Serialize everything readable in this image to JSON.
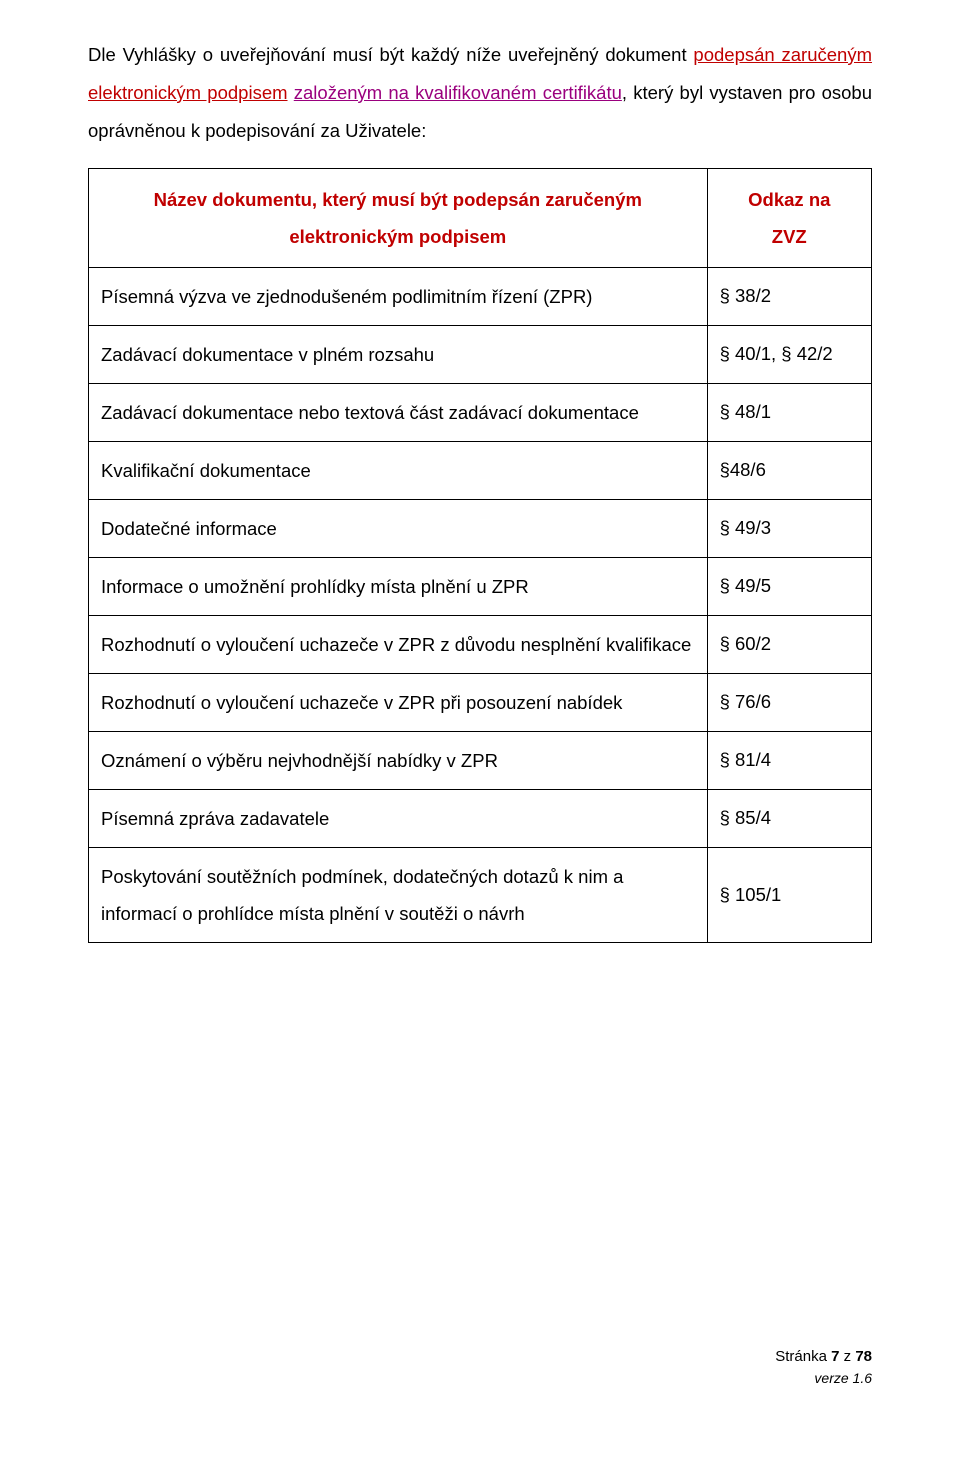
{
  "intro": {
    "prefix": "Dle Vyhlášky o uveřejňování musí být každý níže uveřejněný dokument ",
    "red1": "podepsán zaručeným elektronickým podpisem",
    "mid1": " ",
    "fuchsia1": "založeným na kvalifikovaném certifikátu",
    "comma": ",",
    "mid2": " který byl vystaven pro osobu oprávněnou k podepisování za Uživatele:"
  },
  "table": {
    "header_left_line1": "Název dokumentu, který musí být podepsán zaručeným",
    "header_left_line2": "elektronickým podpisem",
    "header_right_line1": "Odkaz na",
    "header_right_line2": "ZVZ",
    "rows": [
      {
        "name": "Písemná výzva ve zjednodušeném podlimitním řízení (ZPR)",
        "ref": "§ 38/2"
      },
      {
        "name": "Zadávací dokumentace v plném rozsahu",
        "ref": "§ 40/1, § 42/2"
      },
      {
        "name": "Zadávací dokumentace nebo textová část zadávací dokumentace",
        "ref": "§ 48/1"
      },
      {
        "name": "Kvalifikační dokumentace",
        "ref": "§48/6"
      },
      {
        "name": "Dodatečné informace",
        "ref": "§ 49/3"
      },
      {
        "name": "Informace o umožnění prohlídky místa plnění u ZPR",
        "ref": "§ 49/5"
      },
      {
        "name": "Rozhodnutí o vyloučení uchazeče v ZPR z důvodu nesplnění kvalifikace",
        "ref": "§ 60/2"
      },
      {
        "name": "Rozhodnutí o vyloučení uchazeče v ZPR při posouzení nabídek",
        "ref": "§ 76/6"
      },
      {
        "name": "Oznámení o výběru nejvhodnější nabídky v ZPR",
        "ref": "§ 81/4"
      },
      {
        "name": "Písemná zpráva zadavatele",
        "ref": "§ 85/4"
      },
      {
        "name": "Poskytování soutěžních podmínek, dodatečných dotazů k nim a informací o prohlídce místa plnění v soutěži o návrh",
        "ref": "§ 105/1"
      }
    ]
  },
  "footer": {
    "page_word": "Stránka ",
    "page_num": "7",
    "page_of_word": " z ",
    "page_total": "78",
    "version": "verze 1.6"
  }
}
